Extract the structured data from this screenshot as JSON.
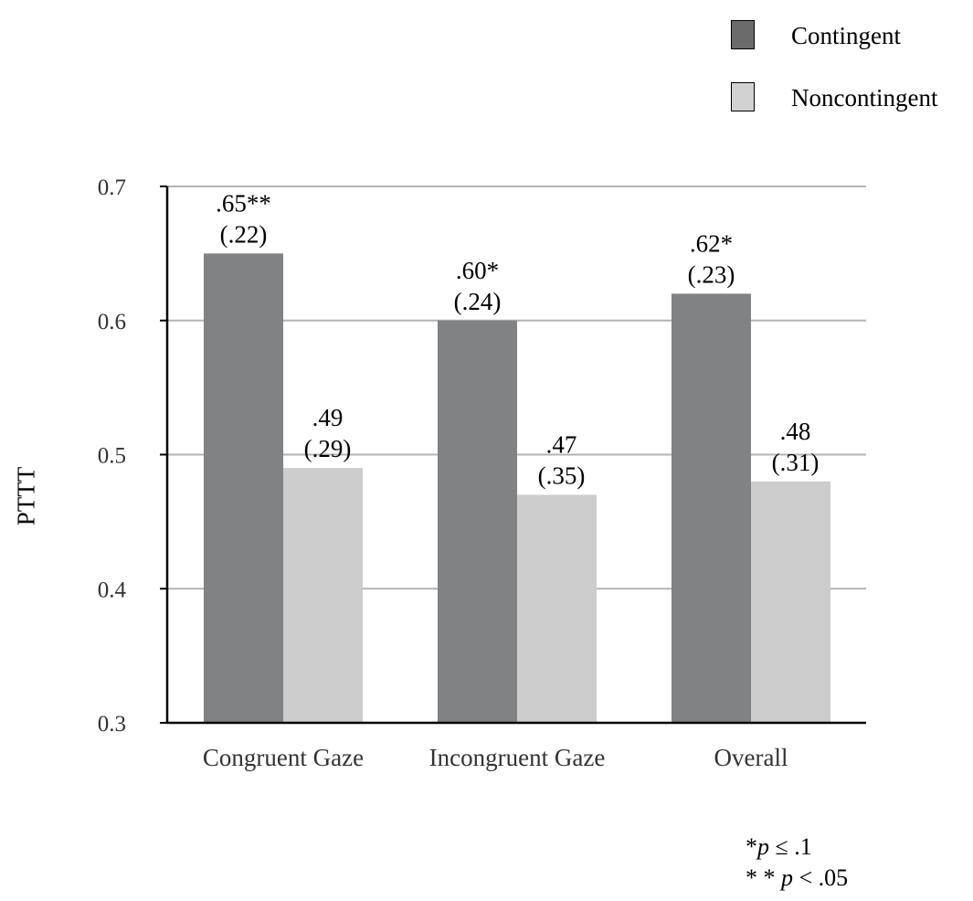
{
  "chart_data": {
    "type": "bar",
    "categories": [
      "Congruent Gaze",
      "Incongruent Gaze",
      "Overall"
    ],
    "series": [
      {
        "name": "Contingent",
        "values": [
          0.65,
          0.6,
          0.62
        ],
        "color": "#808283",
        "labels": [
          [
            ".65**",
            "(.22)"
          ],
          [
            ".60*",
            "(.24)"
          ],
          [
            ".62*",
            "(.23)"
          ]
        ]
      },
      {
        "name": "Noncontingent",
        "values": [
          0.49,
          0.47,
          0.48
        ],
        "color": "#cbcccb",
        "labels": [
          [
            ".49",
            "(.29)"
          ],
          [
            ".47",
            "(.35)"
          ],
          [
            ".48",
            "(.31)"
          ]
        ]
      }
    ],
    "ylabel": "PTTT",
    "ylim": [
      0.3,
      0.7
    ],
    "yticks": [
      "0.3",
      "0.4",
      "0.5",
      "0.6",
      "0.7"
    ],
    "grid": true,
    "legend_position": "top-right"
  },
  "legend": [
    {
      "label": "Contingent",
      "color": "#6b6b6b"
    },
    {
      "label": "Noncontingent",
      "color": "#d2d2d2"
    }
  ],
  "footnotes": [
    {
      "stars": "*",
      "p": "p",
      "rest": "≤ .1"
    },
    {
      "stars": "* *",
      "p": "p",
      "rest": "< .05"
    }
  ]
}
